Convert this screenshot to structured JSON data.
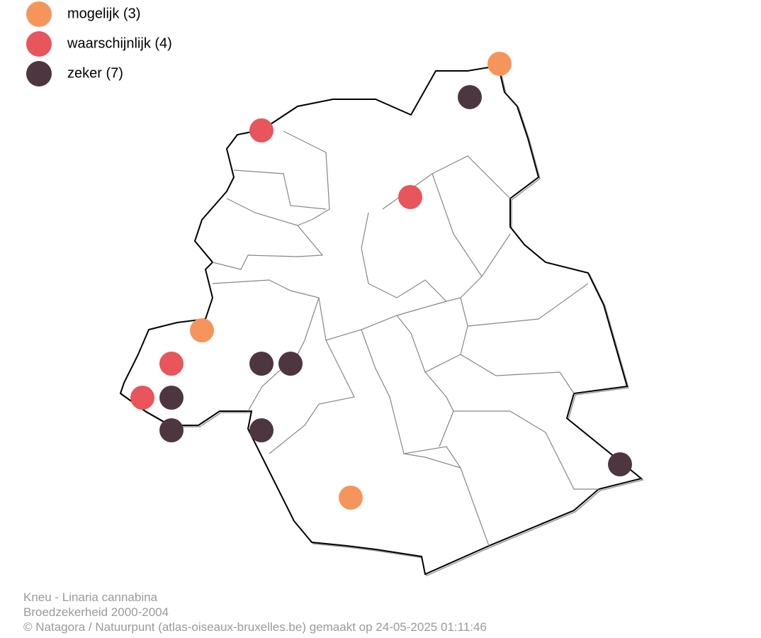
{
  "legend": [
    {
      "label": "mogelijk (3)",
      "color": "#f6955b"
    },
    {
      "label": "waarschijnlijk (4)",
      "color": "#e8555a"
    },
    {
      "label": "zeker (7)",
      "color": "#4e3640"
    }
  ],
  "footer": [
    "Kneu - Linaria cannabina",
    "Broedzekerheid 2000-2004",
    "© Natagora / Natuurpunt (atlas-oiseaux-bruxelles.be) gemaakt op 24-05-2025 01:11:46"
  ]
}
